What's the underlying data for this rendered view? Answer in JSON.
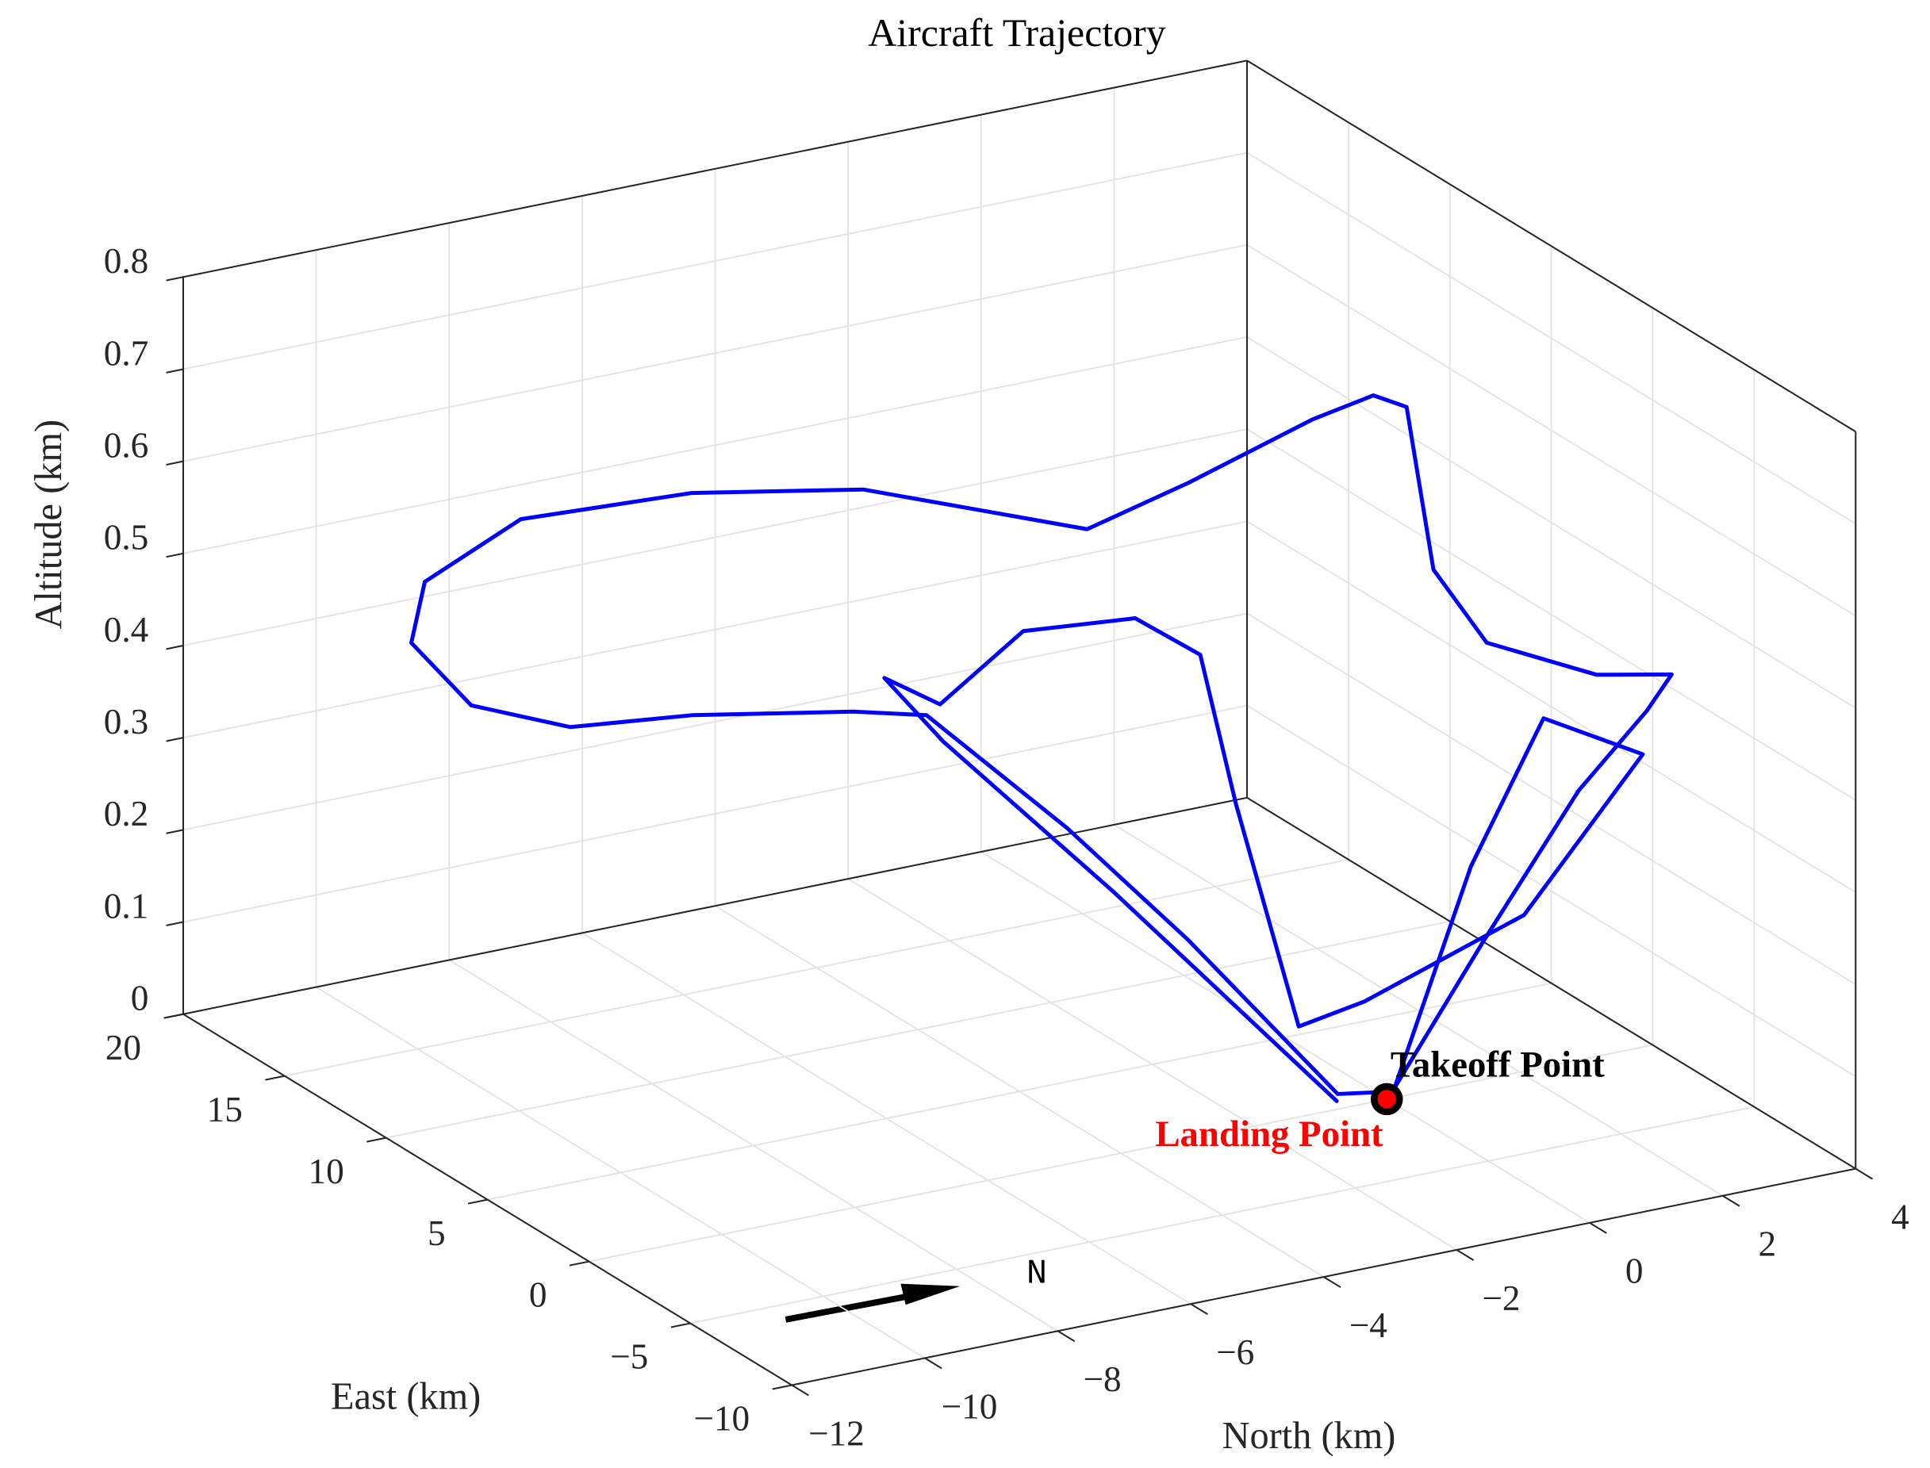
{
  "chart_data": {
    "type": "line3d",
    "title": "Aircraft Trajectory",
    "xlabel": "North (km)",
    "ylabel": "East (km)",
    "zlabel": "Altitude (km)",
    "xlim": [
      -12,
      4
    ],
    "ylim": [
      -10,
      20
    ],
    "zlim": [
      0,
      0.8
    ],
    "xticks": [
      {
        "value": -12,
        "label": "−12"
      },
      {
        "value": -10,
        "label": "−10"
      },
      {
        "value": -8,
        "label": "−8"
      },
      {
        "value": -6,
        "label": "−6"
      },
      {
        "value": -4,
        "label": "−4"
      },
      {
        "value": -2,
        "label": "−2"
      },
      0,
      2,
      4
    ],
    "yticks": [
      {
        "value": -10,
        "label": "−10"
      },
      {
        "value": -5,
        "label": "−5"
      },
      0,
      5,
      10,
      15,
      20
    ],
    "zticks": [
      0,
      0.1,
      0.2,
      0.3,
      0.4,
      0.5,
      0.6,
      0.7,
      0.8
    ],
    "grid": true,
    "series": [
      {
        "color": "#0000ff",
        "x": [
          0.2,
          -0.8,
          -1.0,
          -2.0,
          -3.2,
          -4.3,
          -6.7,
          -8.8,
          -10.2,
          -10.4,
          -9.8,
          -7.9,
          -6.0,
          -4.0,
          -1.7,
          -0.2,
          1.5,
          2.3,
          2.8,
          1.8,
          1.9,
          3.4,
          3.4,
          3.3,
          3.1,
          1.5,
          0.3,
          2.7,
          3.7,
          3.3,
          2.4,
          0.7,
          -0.5,
          -0.5,
          -0.7,
          -1.1,
          -2.6,
          -3.7,
          -3.5,
          -3.5,
          -1.8,
          -0.6
        ],
        "y": [
          0.4,
          -0.2,
          6.5,
          9.2,
          12.2,
          12.2,
          12.3,
          11.4,
          11.7,
          14.0,
          15.3,
          16.8,
          14.6,
          12.7,
          9.2,
          9.1,
          8.6,
          8.2,
          8.2,
          3.6,
          1.3,
          0.8,
          -2.9,
          -2.0,
          0.7,
          0.1,
          0.6,
          4.7,
          4.4,
          -1.8,
          1.1,
          3.4,
          2.7,
          5.8,
          6.9,
          8.8,
          9.4,
          9.9,
          13.3,
          10.4,
          7.6,
          0.5
        ],
        "z": [
          0,
          0.02,
          0.1,
          0.2,
          0.3,
          0.32,
          0.35,
          0.38,
          0.42,
          0.46,
          0.5,
          0.52,
          0.55,
          0.55,
          0.52,
          0.55,
          0.6,
          0.62,
          0.6,
          0.5,
          0.45,
          0.4,
          0.45,
          0.4,
          0.28,
          0.15,
          0,
          0.15,
          0.3,
          0.35,
          0.15,
          0.05,
          0.05,
          0.25,
          0.4,
          0.42,
          0.42,
          0.35,
          0.33,
          0.3,
          0.15,
          0
        ]
      }
    ],
    "markers": [
      {
        "name": "Takeoff Point",
        "x": 0,
        "y": 0,
        "z": 0,
        "color": "#000000"
      },
      {
        "name": "Landing Point",
        "x": 0,
        "y": 0,
        "z": 0,
        "color": "#ff0000"
      }
    ],
    "compass_label": "N"
  }
}
